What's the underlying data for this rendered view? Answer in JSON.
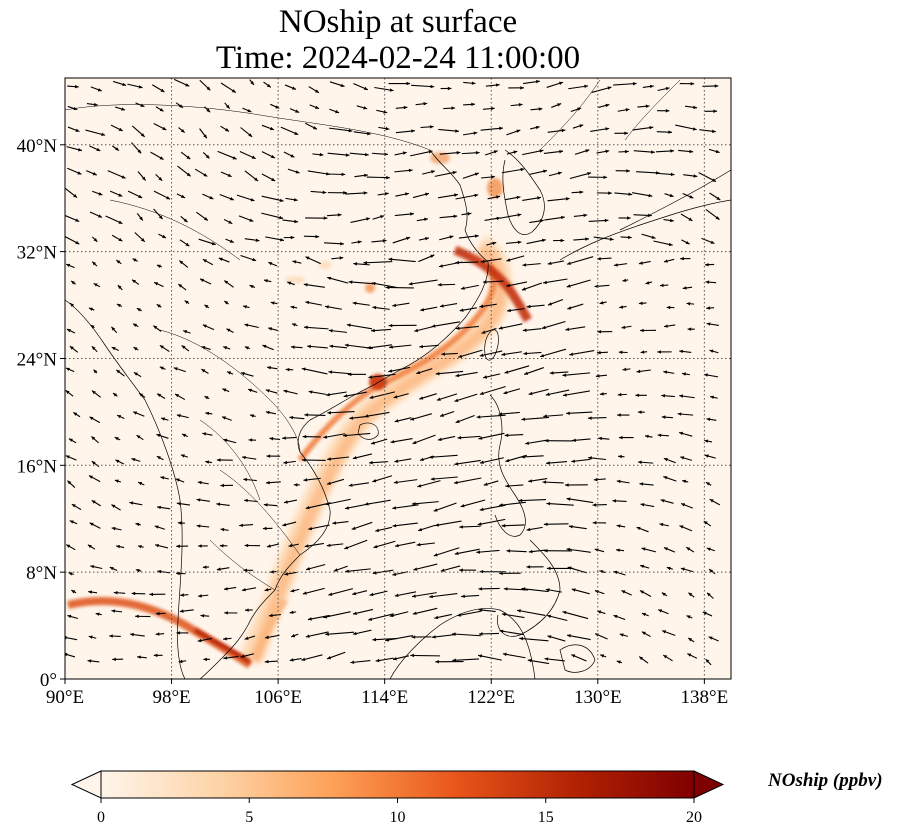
{
  "title_line1": "NOship at surface",
  "title_line2": "Time: 2024-02-24 11:00:00",
  "map": {
    "lon_range": [
      90,
      140
    ],
    "lat_range": [
      0,
      45
    ],
    "x_ticks": [
      {
        "value": 90,
        "label": "90°E"
      },
      {
        "value": 98,
        "label": "98°E"
      },
      {
        "value": 106,
        "label": "106°E"
      },
      {
        "value": 114,
        "label": "114°E"
      },
      {
        "value": 122,
        "label": "122°E"
      },
      {
        "value": 130,
        "label": "130°E"
      },
      {
        "value": 138,
        "label": "138°E"
      }
    ],
    "y_ticks": [
      {
        "value": 0,
        "label": "0°"
      },
      {
        "value": 8,
        "label": "8°N"
      },
      {
        "value": 16,
        "label": "16°N"
      },
      {
        "value": 24,
        "label": "24°N"
      },
      {
        "value": 32,
        "label": "32°N"
      },
      {
        "value": 40,
        "label": "40°N"
      }
    ],
    "gridlines": true
  },
  "colorbar": {
    "label": "NOship (ppbv)",
    "min": 0,
    "max": 20,
    "ticks": [
      "0",
      "5",
      "10",
      "15",
      "20"
    ],
    "extend": "both",
    "colors": [
      "#fff5eb",
      "#fdd3a6",
      "#fd9e54",
      "#e8551a",
      "#b22203",
      "#7f0000"
    ]
  },
  "colors": {
    "plume": "#d9480f",
    "plume_dark": "#8b0000",
    "coastline": "#000000",
    "grid": "#555555",
    "arrow": "#000000"
  }
}
